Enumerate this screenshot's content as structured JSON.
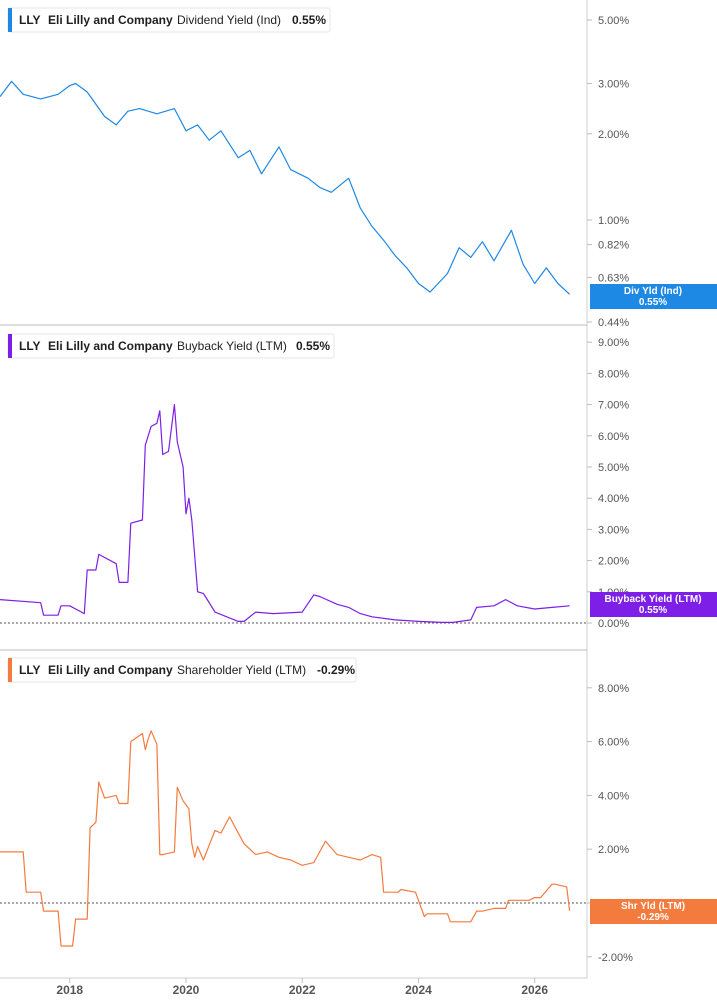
{
  "chart_data": [
    {
      "type": "line",
      "ticker": "LLY",
      "company": "Eli Lilly and Company",
      "metric": "Dividend Yield (Ind)",
      "current": "0.55%",
      "color": "#1e88e5",
      "scale": "log",
      "yticks": [
        "5.00%",
        "3.00%",
        "2.00%",
        "1.00%",
        "0.82%",
        "0.63%",
        "0.44%"
      ],
      "ytick_values": [
        5.0,
        3.0,
        2.0,
        1.0,
        0.82,
        0.63,
        0.44
      ],
      "badge": [
        "Div Yld (Ind)",
        "0.55%"
      ],
      "series": [
        {
          "x": [
            2016.8,
            2017.0,
            2017.2,
            2017.5,
            2017.8,
            2018.0,
            2018.1,
            2018.3,
            2018.6,
            2018.8,
            2019.0,
            2019.2,
            2019.5,
            2019.8,
            2020.0,
            2020.2,
            2020.4,
            2020.6,
            2020.9,
            2021.1,
            2021.3,
            2021.6,
            2021.8,
            2022.1,
            2022.3,
            2022.5,
            2022.8,
            2023.0,
            2023.2,
            2023.4,
            2023.6,
            2023.8,
            2024.0,
            2024.2,
            2024.5,
            2024.7,
            2024.9,
            2025.1,
            2025.3,
            2025.6,
            2025.8,
            2026.0,
            2026.2,
            2026.4,
            2026.6
          ],
          "y": [
            2.7,
            3.05,
            2.75,
            2.65,
            2.75,
            2.95,
            3.0,
            2.8,
            2.3,
            2.15,
            2.4,
            2.45,
            2.35,
            2.45,
            2.05,
            2.15,
            1.9,
            2.05,
            1.65,
            1.75,
            1.45,
            1.8,
            1.5,
            1.4,
            1.3,
            1.25,
            1.4,
            1.1,
            0.95,
            0.85,
            0.75,
            0.68,
            0.6,
            0.56,
            0.65,
            0.8,
            0.74,
            0.84,
            0.72,
            0.92,
            0.7,
            0.6,
            0.68,
            0.6,
            0.55
          ]
        }
      ]
    },
    {
      "type": "line",
      "ticker": "LLY",
      "company": "Eli Lilly and Company",
      "metric": "Buyback Yield (LTM)",
      "current": "0.55%",
      "color": "#7d1fe6",
      "scale": "linear",
      "ylim": [
        0,
        9
      ],
      "yticks": [
        "9.00%",
        "8.00%",
        "7.00%",
        "6.00%",
        "5.00%",
        "4.00%",
        "3.00%",
        "2.00%",
        "1.00%",
        "0.00%"
      ],
      "ytick_values": [
        9,
        8,
        7,
        6,
        5,
        4,
        3,
        2,
        1,
        0
      ],
      "badge": [
        "Buyback Yield (LTM)",
        "0.55%"
      ],
      "series": [
        {
          "x": [
            2016.8,
            2017.5,
            2017.55,
            2017.8,
            2017.85,
            2018.0,
            2018.25,
            2018.3,
            2018.45,
            2018.5,
            2018.8,
            2018.85,
            2019.0,
            2019.05,
            2019.25,
            2019.3,
            2019.4,
            2019.5,
            2019.55,
            2019.6,
            2019.7,
            2019.8,
            2019.85,
            2019.95,
            2020.0,
            2020.05,
            2020.1,
            2020.2,
            2020.3,
            2020.35,
            2020.5,
            2020.7,
            2020.9,
            2021.0,
            2021.2,
            2021.5,
            2022.0,
            2022.2,
            2022.3,
            2022.6,
            2022.8,
            2023.0,
            2023.2,
            2023.6,
            2024.0,
            2024.4,
            2024.6,
            2024.9,
            2025.0,
            2025.3,
            2025.5,
            2025.7,
            2026.0,
            2026.3,
            2026.6
          ],
          "y": [
            0.75,
            0.65,
            0.25,
            0.25,
            0.55,
            0.55,
            0.3,
            1.7,
            1.7,
            2.2,
            1.9,
            1.3,
            1.3,
            3.2,
            3.3,
            5.7,
            6.3,
            6.4,
            6.8,
            5.4,
            5.5,
            7.0,
            5.8,
            5.0,
            3.5,
            4.0,
            3.3,
            1.0,
            0.95,
            0.8,
            0.35,
            0.2,
            0.05,
            0.05,
            0.35,
            0.3,
            0.35,
            0.9,
            0.85,
            0.6,
            0.5,
            0.3,
            0.2,
            0.1,
            0.05,
            0.02,
            0.02,
            0.1,
            0.5,
            0.55,
            0.75,
            0.55,
            0.45,
            0.5,
            0.55
          ]
        }
      ]
    },
    {
      "type": "line",
      "ticker": "LLY",
      "company": "Eli Lilly and Company",
      "metric": "Shareholder Yield (LTM)",
      "current": "-0.29%",
      "color": "#f47b3e",
      "scale": "linear",
      "ylim": [
        -2.5,
        8.8
      ],
      "yticks": [
        "8.00%",
        "6.00%",
        "4.00%",
        "2.00%",
        "0.00%",
        "-2.00%"
      ],
      "ytick_values": [
        8,
        6,
        4,
        2,
        0,
        -2
      ],
      "badge": [
        "Shr Yld (LTM)",
        "-0.29%"
      ],
      "series": [
        {
          "x": [
            2016.8,
            2017.2,
            2017.25,
            2017.5,
            2017.55,
            2017.8,
            2017.85,
            2018.05,
            2018.1,
            2018.3,
            2018.35,
            2018.45,
            2018.5,
            2018.6,
            2018.8,
            2018.85,
            2019.0,
            2019.05,
            2019.25,
            2019.3,
            2019.35,
            2019.4,
            2019.5,
            2019.55,
            2019.6,
            2019.8,
            2019.85,
            2019.95,
            2020.05,
            2020.1,
            2020.15,
            2020.2,
            2020.3,
            2020.5,
            2020.6,
            2020.75,
            2020.8,
            2021.0,
            2021.2,
            2021.4,
            2021.6,
            2021.8,
            2022.0,
            2022.2,
            2022.4,
            2022.6,
            2022.8,
            2023.0,
            2023.2,
            2023.35,
            2023.4,
            2023.65,
            2023.7,
            2023.95,
            2024.1,
            2024.15,
            2024.5,
            2024.55,
            2024.9,
            2025.0,
            2025.1,
            2025.3,
            2025.5,
            2025.55,
            2025.9,
            2026.0,
            2026.1,
            2026.3,
            2026.35,
            2026.55,
            2026.6
          ],
          "y": [
            1.9,
            1.9,
            0.4,
            0.4,
            -0.3,
            -0.3,
            -1.6,
            -1.6,
            -0.6,
            -0.6,
            2.8,
            3.0,
            4.5,
            3.9,
            4.0,
            3.7,
            3.7,
            6.0,
            6.3,
            5.7,
            6.1,
            6.4,
            5.9,
            1.8,
            1.8,
            1.9,
            4.3,
            3.8,
            3.5,
            2.2,
            1.7,
            2.1,
            1.6,
            2.7,
            2.6,
            3.2,
            3.0,
            2.2,
            1.8,
            1.9,
            1.7,
            1.6,
            1.4,
            1.5,
            2.3,
            1.8,
            1.7,
            1.6,
            1.8,
            1.7,
            0.4,
            0.4,
            0.5,
            0.4,
            -0.5,
            -0.4,
            -0.4,
            -0.7,
            -0.7,
            -0.3,
            -0.3,
            -0.2,
            -0.2,
            0.1,
            0.1,
            0.2,
            0.2,
            0.7,
            0.7,
            0.6,
            -0.29
          ]
        }
      ]
    }
  ],
  "x_axis": {
    "labels": [
      "2018",
      "2020",
      "2022",
      "2024",
      "2026"
    ],
    "values": [
      2018,
      2020,
      2022,
      2024,
      2026
    ],
    "range": [
      2016.8,
      2026.9
    ]
  }
}
